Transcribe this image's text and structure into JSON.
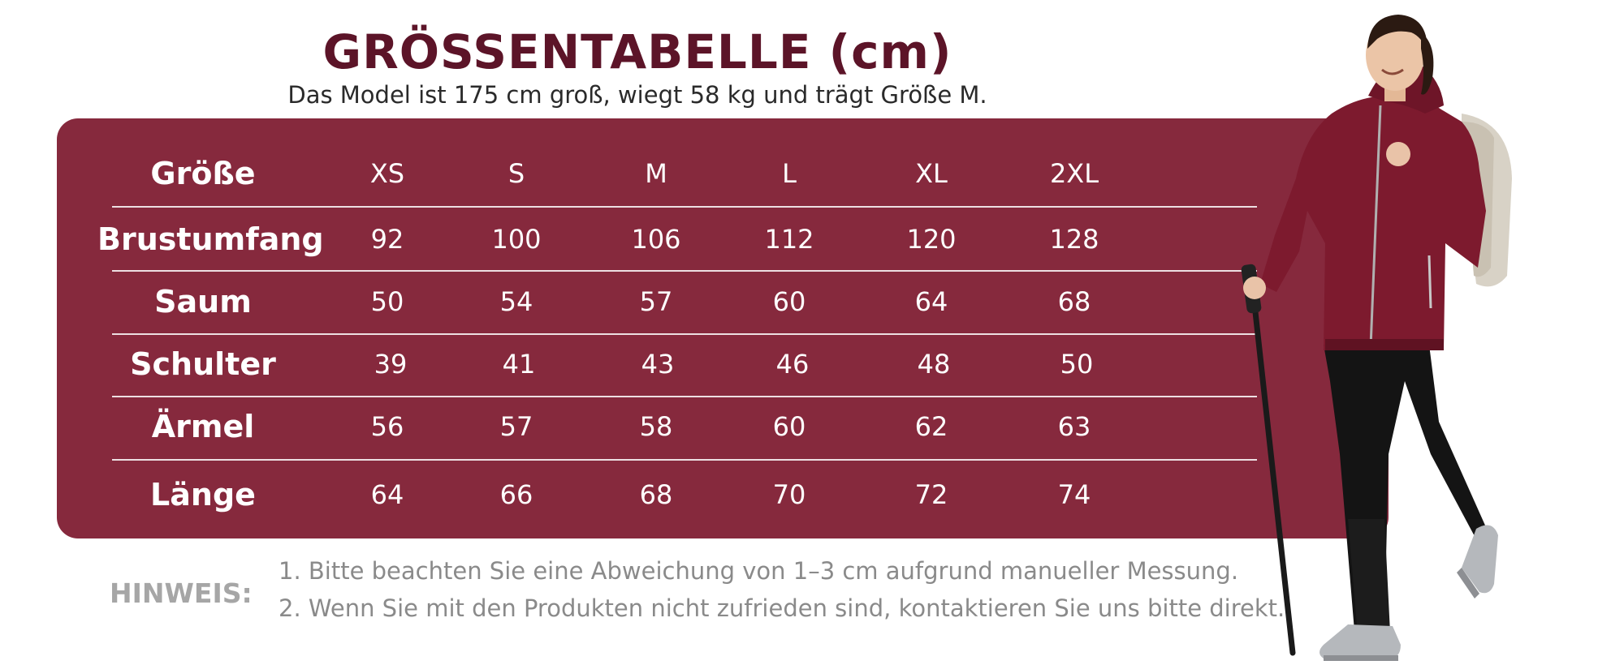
{
  "header": {
    "title": "GRÖSSENTABELLE (cm)",
    "subtitle": "Das Model ist 175 cm groß, wiegt 58 kg und trägt Größe M."
  },
  "table": {
    "header_label": "Größe",
    "sizes": [
      "XS",
      "S",
      "M",
      "L",
      "XL",
      "2XL"
    ],
    "rows": [
      {
        "label": "Brustumfang",
        "values": [
          "92",
          "100",
          "106",
          "112",
          "120",
          "128"
        ]
      },
      {
        "label": "Saum",
        "values": [
          "50",
          "54",
          "57",
          "60",
          "64",
          "68"
        ]
      },
      {
        "label": "Schulter",
        "values": [
          "39",
          "41",
          "43",
          "46",
          "48",
          "50"
        ]
      },
      {
        "label": "Ärmel",
        "values": [
          "56",
          "57",
          "58",
          "60",
          "62",
          "63"
        ]
      },
      {
        "label": "Länge",
        "values": [
          "64",
          "66",
          "68",
          "70",
          "72",
          "74"
        ]
      }
    ]
  },
  "notes": {
    "label": "HINWEIS:",
    "items": [
      "1. Bitte beachten Sie eine Abweichung von 1–3 cm aufgrund manueller Messung.",
      "2. Wenn Sie mit den Produkten nicht zufrieden sind, kontaktieren Sie uns bitte direkt."
    ]
  },
  "colors": {
    "panel": "#86293d",
    "title": "#5c1428",
    "jacket": "#7d1a2e",
    "pants": "#141414"
  }
}
